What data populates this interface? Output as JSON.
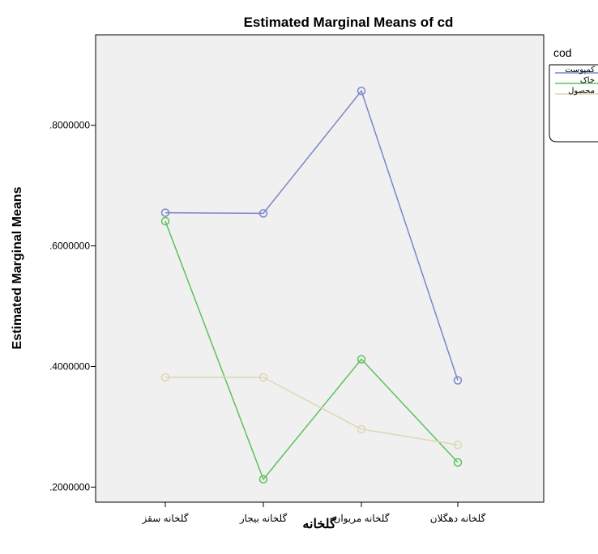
{
  "chart_data": {
    "type": "line",
    "title": "Estimated Marginal Means of cd",
    "xlabel": "گلخانه",
    "ylabel": "Estimated Marginal Means",
    "categories": [
      "گلخانه سقز",
      "گلخانه بیجار",
      "گلخانه مریوان",
      "گلخانه دهگلان"
    ],
    "ylim": [
      0.175,
      0.95
    ],
    "yticks": [
      0.2,
      0.4,
      0.6,
      0.8
    ],
    "ytick_labels": [
      ".2000000",
      ".4000000",
      ".6000000",
      ".8000000"
    ],
    "grid": false,
    "legend": {
      "title": "cod",
      "position": "right"
    },
    "series": [
      {
        "name": "کمپوست",
        "color": "#7b86c8",
        "values": [
          0.655,
          0.654,
          0.857,
          0.377
        ]
      },
      {
        "name": "خاک",
        "color": "#5cc25c",
        "values": [
          0.641,
          0.213,
          0.412,
          0.241
        ]
      },
      {
        "name": "محصول",
        "color": "#dcd7b4",
        "values": [
          0.382,
          0.382,
          0.296,
          0.27
        ]
      }
    ]
  }
}
